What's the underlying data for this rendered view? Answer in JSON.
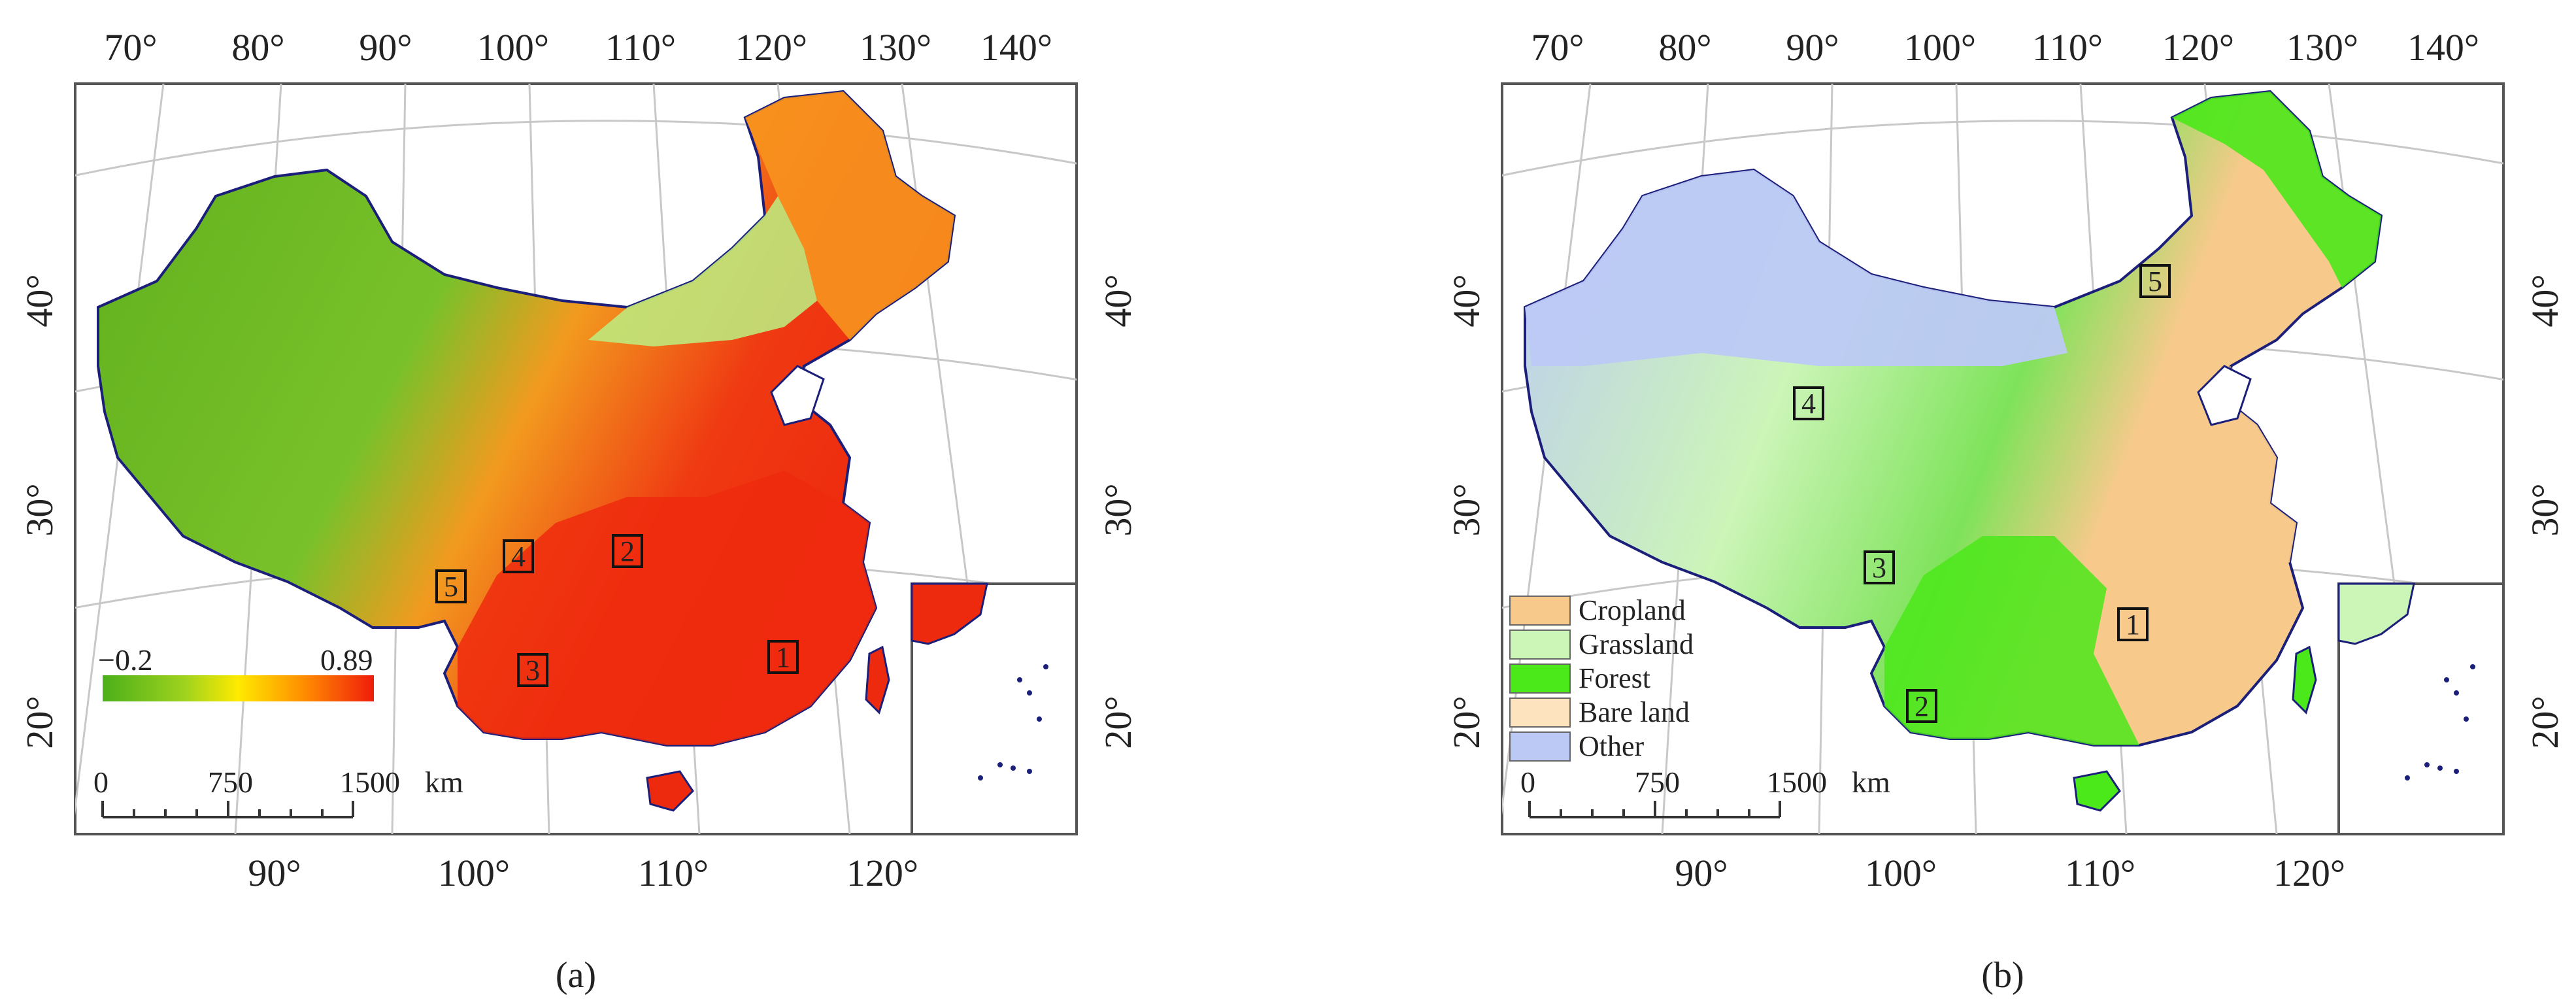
{
  "panels": [
    {
      "id": "a",
      "caption": "(a)",
      "top_lon_labels": [
        "70°",
        "80°",
        "90°",
        "100°",
        "110°",
        "120°",
        "130°",
        "140°"
      ],
      "bottom_lon_labels": [
        "90°",
        "100°",
        "110°",
        "120°"
      ],
      "lat_labels": [
        "40°",
        "30°",
        "20°"
      ],
      "colorbar": {
        "min_label": "−0.2",
        "max_label": "0.89",
        "min": -0.2,
        "max": 0.89,
        "colors": [
          "#4caf1a",
          "#9ed21e",
          "#ffea00",
          "#ff8a00",
          "#ef1c0c"
        ]
      },
      "scalebar": {
        "ticks": [
          "0",
          "750",
          "1500"
        ],
        "unit": "km"
      },
      "site_markers": [
        "1",
        "2",
        "3",
        "4",
        "5"
      ],
      "colors": {
        "low": "#5fb01d",
        "mid": "#b6e06a",
        "high": "#ff7a14",
        "vhigh": "#ee2a0e"
      }
    },
    {
      "id": "b",
      "caption": "(b)",
      "top_lon_labels": [
        "70°",
        "80°",
        "90°",
        "100°",
        "110°",
        "120°",
        "130°",
        "140°"
      ],
      "bottom_lon_labels": [
        "90°",
        "100°",
        "110°",
        "120°"
      ],
      "lat_labels": [
        "40°",
        "30°",
        "20°"
      ],
      "legend": [
        {
          "label": "Cropland",
          "color": "#f7c98b"
        },
        {
          "label": "Grassland",
          "color": "#ccf5b8"
        },
        {
          "label": "Forest",
          "color": "#4be81a"
        },
        {
          "label": "Bare land",
          "color": "#fde3be"
        },
        {
          "label": "Other",
          "color": "#bcc9f5"
        }
      ],
      "scalebar": {
        "ticks": [
          "0",
          "750",
          "1500"
        ],
        "unit": "km"
      },
      "site_markers": [
        "1",
        "2",
        "3",
        "4",
        "5"
      ]
    }
  ],
  "map_colors": {
    "border": "#1b1f7a",
    "graticule": "#c8c8c8",
    "frame": "#555555"
  }
}
